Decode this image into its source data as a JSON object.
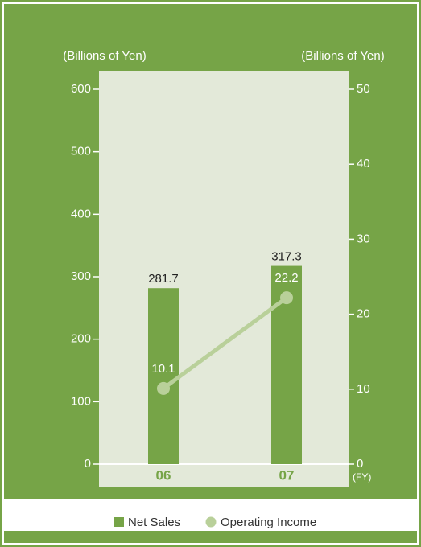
{
  "chart_data": {
    "type": "bar-line",
    "categories": [
      "06",
      "07"
    ],
    "xlabel": "(FY)",
    "ylabel": "(Billions of Yen)",
    "y2label": "(Billions of Yen)",
    "series": [
      {
        "name": "Net Sales",
        "color": "#76a447",
        "values": [
          281.7,
          317.3
        ]
      },
      {
        "name": "Operating Income",
        "color": "#b9d09a",
        "values": [
          10.1,
          22.2
        ],
        "axis": "y2"
      }
    ],
    "ylim": [
      0,
      600
    ],
    "yticks": [
      0,
      100,
      200,
      300,
      400,
      500,
      600
    ],
    "y2lim": [
      0,
      50
    ],
    "y2ticks": [
      0,
      10,
      20,
      30,
      40,
      50
    ]
  }
}
